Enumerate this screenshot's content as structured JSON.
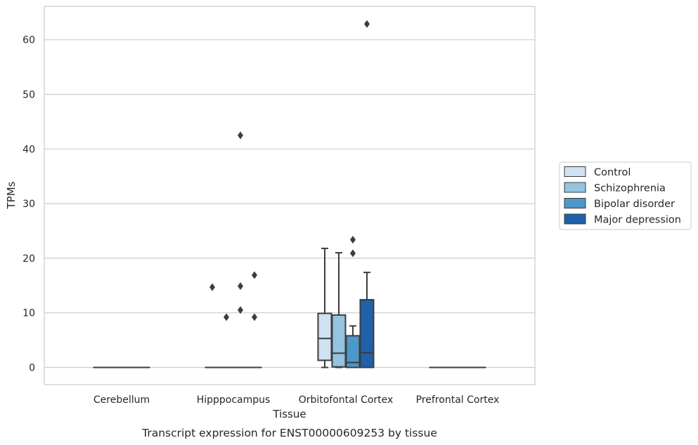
{
  "chart_data": {
    "type": "box",
    "caption": "Transcript expression for ENST00000609253 by tissue",
    "xlabel": "Tissue",
    "ylabel": "TPMs",
    "ylim": [
      -3,
      66
    ],
    "yticks": [
      0,
      10,
      20,
      30,
      40,
      50,
      60
    ],
    "grid": "horizontal",
    "legend_position": "right",
    "categories": [
      "Cerebellum",
      "Hipppocampus",
      "Orbitofontal Cortex",
      "Prefrontal Cortex"
    ],
    "series": [
      {
        "name": "Control",
        "color": "#d0e1f2",
        "boxes": [
          {
            "category": "Cerebellum",
            "q1": 0,
            "median": 0,
            "q3": 0,
            "whisker_low": 0,
            "whisker_high": 0,
            "outliers": []
          },
          {
            "category": "Hipppocampus",
            "q1": 0,
            "median": 0,
            "q3": 0,
            "whisker_low": 0,
            "whisker_high": 0,
            "outliers": [
              14.7
            ]
          },
          {
            "category": "Orbitofontal Cortex",
            "q1": 1.3,
            "median": 5.3,
            "q3": 9.9,
            "whisker_low": 0,
            "whisker_high": 21.8,
            "outliers": []
          },
          {
            "category": "Prefrontal Cortex",
            "q1": 0,
            "median": 0,
            "q3": 0,
            "whisker_low": 0,
            "whisker_high": 0,
            "outliers": []
          }
        ]
      },
      {
        "name": "Schizophrenia",
        "color": "#94c4df",
        "boxes": [
          {
            "category": "Cerebellum",
            "q1": 0,
            "median": 0,
            "q3": 0,
            "whisker_low": 0,
            "whisker_high": 0,
            "outliers": []
          },
          {
            "category": "Hipppocampus",
            "q1": 0,
            "median": 0,
            "q3": 0,
            "whisker_low": 0,
            "whisker_high": 0,
            "outliers": [
              9.2
            ]
          },
          {
            "category": "Orbitofontal Cortex",
            "q1": 0.1,
            "median": 2.6,
            "q3": 9.6,
            "whisker_low": 0,
            "whisker_high": 21.0,
            "outliers": []
          },
          {
            "category": "Prefrontal Cortex",
            "q1": 0,
            "median": 0,
            "q3": 0,
            "whisker_low": 0,
            "whisker_high": 0,
            "outliers": []
          }
        ]
      },
      {
        "name": "Bipolar disorder",
        "color": "#4b98c9",
        "boxes": [
          {
            "category": "Cerebellum",
            "q1": 0,
            "median": 0,
            "q3": 0,
            "whisker_low": 0,
            "whisker_high": 0,
            "outliers": []
          },
          {
            "category": "Hipppocampus",
            "q1": 0,
            "median": 0,
            "q3": 0,
            "whisker_low": 0,
            "whisker_high": 0,
            "outliers": [
              10.5,
              14.9,
              42.5
            ]
          },
          {
            "category": "Orbitofontal Cortex",
            "q1": 0,
            "median": 0.9,
            "q3": 5.8,
            "whisker_low": 0,
            "whisker_high": 7.6,
            "outliers": [
              20.9,
              23.4
            ]
          },
          {
            "category": "Prefrontal Cortex",
            "q1": 0,
            "median": 0,
            "q3": 0,
            "whisker_low": 0,
            "whisker_high": 0,
            "outliers": []
          }
        ]
      },
      {
        "name": "Major depression",
        "color": "#2061a9",
        "boxes": [
          {
            "category": "Cerebellum",
            "q1": 0,
            "median": 0,
            "q3": 0,
            "whisker_low": 0,
            "whisker_high": 0,
            "outliers": []
          },
          {
            "category": "Hipppocampus",
            "q1": 0,
            "median": 0,
            "q3": 0,
            "whisker_low": 0,
            "whisker_high": 0,
            "outliers": [
              9.2,
              16.9
            ]
          },
          {
            "category": "Orbitofontal Cortex",
            "q1": 0,
            "median": 2.7,
            "q3": 12.4,
            "whisker_low": 0,
            "whisker_high": 17.4,
            "outliers": [
              62.9
            ]
          },
          {
            "category": "Prefrontal Cortex",
            "q1": 0,
            "median": 0,
            "q3": 0,
            "whisker_low": 0,
            "whisker_high": 0,
            "outliers": []
          }
        ]
      }
    ]
  }
}
